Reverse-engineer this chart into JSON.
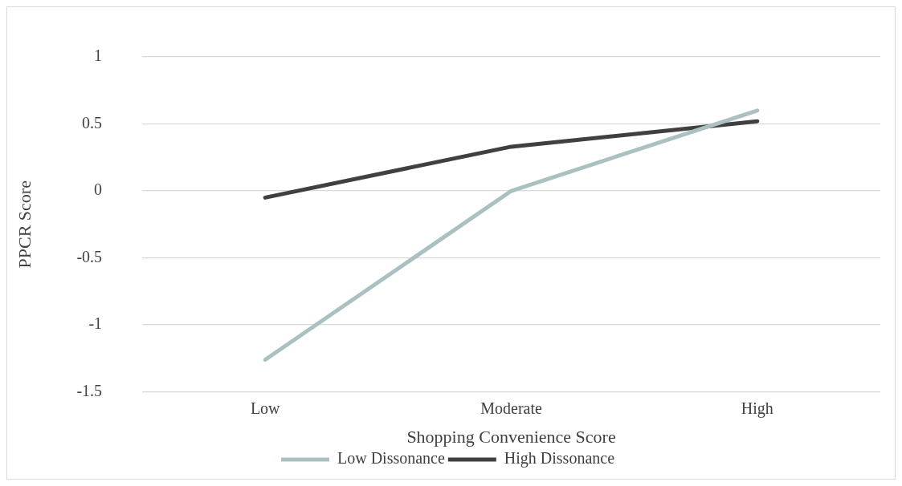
{
  "chart_data": {
    "type": "line",
    "xlabel": "Shopping Convenience Score",
    "ylabel": "PPCR Score",
    "categories": [
      "Low",
      "Moderate",
      "High"
    ],
    "series": [
      {
        "name": "Low Dissonance",
        "color": "#abc1c1",
        "values": [
          -1.26,
          0.0,
          0.6
        ]
      },
      {
        "name": "High Dissonance",
        "color": "#404040",
        "values": [
          -0.05,
          0.33,
          0.52
        ]
      }
    ],
    "ylim": [
      -1.5,
      1
    ],
    "yticks": [
      -1.5,
      -1,
      -0.5,
      0,
      0.5,
      1
    ],
    "grid": "y",
    "legend": "bottom",
    "marker": "none",
    "line_style": "solid"
  }
}
